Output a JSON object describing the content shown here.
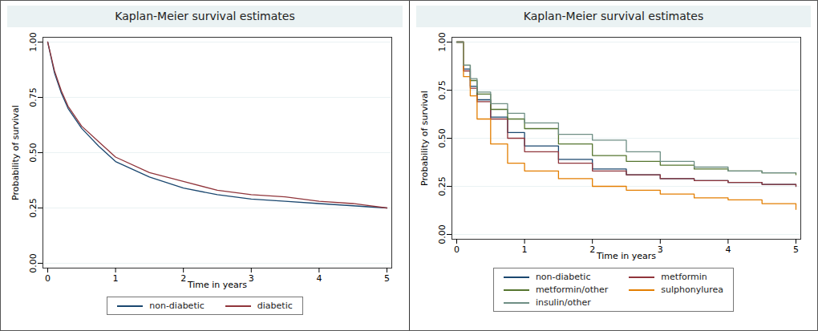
{
  "chart_data": [
    {
      "type": "line",
      "title": "Kaplan-Meier survival estimates",
      "x_label": "Time in years",
      "y_label": "Probability of survival",
      "xlim": [
        0,
        5
      ],
      "xticks": [
        0,
        1,
        2,
        3,
        4,
        5
      ],
      "ylim": [
        0,
        1
      ],
      "yticks": [
        {
          "value": 0,
          "label": "0.00"
        },
        {
          "value": 0.25,
          "label": "0.25"
        },
        {
          "value": 0.5,
          "label": "0.50"
        },
        {
          "value": 0.75,
          "label": "0.75"
        },
        {
          "value": 1,
          "label": "1.00"
        }
      ],
      "grid": true,
      "legend": "bottom",
      "x": [
        0,
        0.1,
        0.2,
        0.3,
        0.5,
        0.75,
        1,
        1.5,
        2,
        2.5,
        3,
        3.5,
        4,
        4.5,
        5
      ],
      "series": [
        {
          "name": "non-diabetic",
          "color": "#1a476f",
          "values": [
            1,
            0.86,
            0.77,
            0.7,
            0.61,
            0.53,
            0.46,
            0.39,
            0.34,
            0.31,
            0.29,
            0.28,
            0.27,
            0.26,
            0.25
          ]
        },
        {
          "name": "diabetic",
          "color": "#90353b",
          "values": [
            1,
            0.87,
            0.78,
            0.71,
            0.62,
            0.55,
            0.48,
            0.41,
            0.37,
            0.33,
            0.31,
            0.3,
            0.28,
            0.27,
            0.25
          ]
        }
      ]
    },
    {
      "type": "line",
      "title": "Kaplan-Meier survival estimates",
      "x_label": "Time in years",
      "y_label": "Probability of survival",
      "xlim": [
        0,
        5
      ],
      "xticks": [
        0,
        1,
        2,
        3,
        4,
        5
      ],
      "ylim": [
        0,
        1
      ],
      "yticks": [
        {
          "value": 0,
          "label": "0.00"
        },
        {
          "value": 0.25,
          "label": "0.25"
        },
        {
          "value": 0.5,
          "label": "0.50"
        },
        {
          "value": 0.75,
          "label": "0.75"
        },
        {
          "value": 1,
          "label": "1.00"
        }
      ],
      "grid": true,
      "legend": "bottom",
      "x": [
        0,
        0.1,
        0.2,
        0.3,
        0.5,
        0.75,
        1,
        1.5,
        2,
        2.5,
        3,
        3.5,
        4,
        4.5,
        5
      ],
      "series": [
        {
          "name": "non-diabetic",
          "color": "#1a476f",
          "line_style": "step",
          "values": [
            1,
            0.86,
            0.77,
            0.7,
            0.61,
            0.53,
            0.46,
            0.39,
            0.34,
            0.31,
            0.29,
            0.28,
            0.27,
            0.26,
            0.25
          ]
        },
        {
          "name": "metformin",
          "color": "#90353b",
          "line_style": "step",
          "values": [
            1,
            0.85,
            0.76,
            0.69,
            0.6,
            0.5,
            0.43,
            0.37,
            0.33,
            0.31,
            0.29,
            0.28,
            0.27,
            0.26,
            0.25
          ]
        },
        {
          "name": "metformin/other",
          "color": "#55752f",
          "line_style": "step",
          "values": [
            1,
            0.88,
            0.8,
            0.73,
            0.65,
            0.6,
            0.55,
            0.47,
            0.41,
            0.38,
            0.36,
            0.34,
            0.33,
            0.32,
            0.31
          ]
        },
        {
          "name": "sulphonylurea",
          "color": "#e37e00",
          "line_style": "step",
          "values": [
            1,
            0.82,
            0.72,
            0.6,
            0.47,
            0.37,
            0.33,
            0.29,
            0.25,
            0.23,
            0.21,
            0.19,
            0.18,
            0.16,
            0.13
          ]
        },
        {
          "name": "insulin/other",
          "color": "#6e8e84",
          "line_style": "step",
          "values": [
            1,
            0.88,
            0.81,
            0.74,
            0.68,
            0.63,
            0.58,
            0.52,
            0.49,
            0.43,
            0.38,
            0.35,
            0.33,
            0.32,
            0.32
          ]
        }
      ]
    }
  ]
}
